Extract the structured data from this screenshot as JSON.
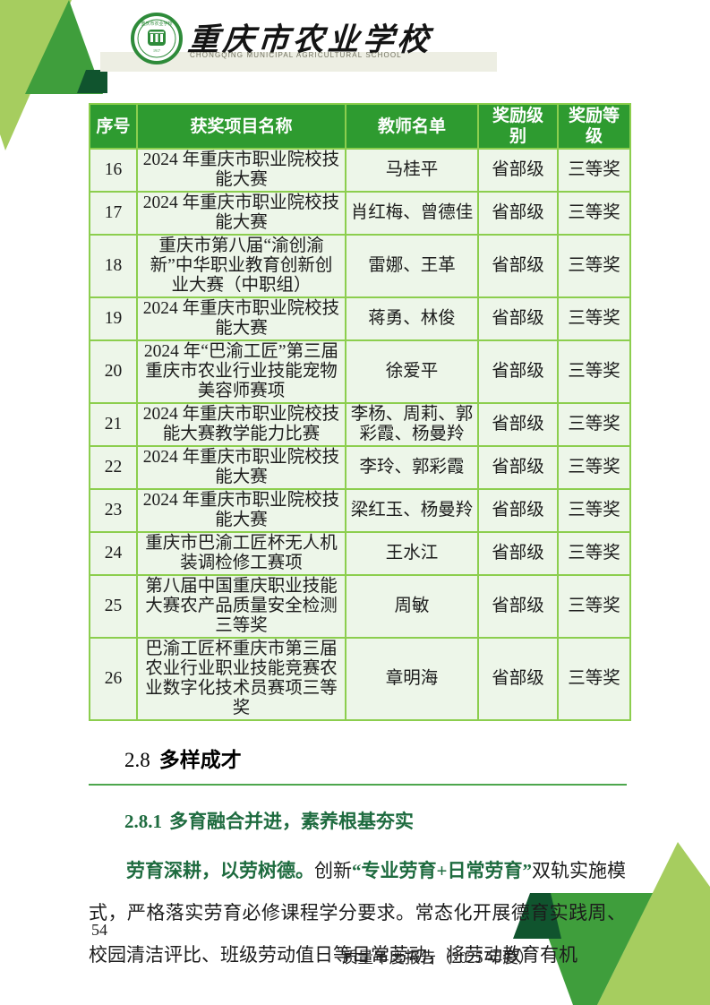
{
  "header": {
    "school_name_cn": "重庆市农业学校",
    "school_name_en": "CHONGQING MUNICIPAL AGRICULTURAL SCHOOL",
    "logo_icon": "school-emblem-green-ring-pavilion"
  },
  "colors": {
    "table_header_green": "#2e9b30",
    "table_border_green": "#8cce4e",
    "table_cell_bg": "#edf6e9",
    "decor_light_green": "#a6cd5f",
    "decor_mid_green": "#3f9e3c",
    "decor_dark_green": "#10542e",
    "heading_green": "#1e6b3f",
    "rule_green": "#4da64d",
    "header_bar_gray": "#edeee3"
  },
  "table": {
    "headers": [
      "序号",
      "获奖项目名称",
      "教师名单",
      "奖励级别",
      "奖励等级"
    ],
    "rows": [
      [
        "16",
        "2024 年重庆市职业院校技能大赛",
        "马桂平",
        "省部级",
        "三等奖"
      ],
      [
        "17",
        "2024 年重庆市职业院校技能大赛",
        "肖红梅、曾德佳",
        "省部级",
        "三等奖"
      ],
      [
        "18",
        "重庆市第八届“渝创渝新”中华职业教育创新创业大赛（中职组）",
        "雷娜、王革",
        "省部级",
        "三等奖"
      ],
      [
        "19",
        "2024 年重庆市职业院校技能大赛",
        "蒋勇、林俊",
        "省部级",
        "三等奖"
      ],
      [
        "20",
        "2024 年“巴渝工匠”第三届重庆市农业行业技能宠物美容师赛项",
        "徐爱平",
        "省部级",
        "三等奖"
      ],
      [
        "21",
        "2024 年重庆市职业院校技能大赛教学能力比赛",
        "李杨、周莉、郭彩霞、杨曼羚",
        "省部级",
        "三等奖"
      ],
      [
        "22",
        "2024 年重庆市职业院校技能大赛",
        "李玲、郭彩霞",
        "省部级",
        "三等奖"
      ],
      [
        "23",
        "2024 年重庆市职业院校技能大赛",
        "梁红玉、杨曼羚",
        "省部级",
        "三等奖"
      ],
      [
        "24",
        "重庆市巴渝工匠杯无人机装调检修工赛项",
        "王水江",
        "省部级",
        "三等奖"
      ],
      [
        "25",
        "第八届中国重庆职业技能大赛农产品质量安全检测三等奖",
        "周敏",
        "省部级",
        "三等奖"
      ],
      [
        "26",
        "巴渝工匠杯重庆市第三届农业行业职业技能竞赛农业数字化技术员赛项三等奖",
        "章明海",
        "省部级",
        "三等奖"
      ]
    ]
  },
  "section": {
    "number": "2.8",
    "title": "多样成才"
  },
  "subsection": {
    "number": "2.8.1",
    "title": "多育融合并进，素养根基夯实"
  },
  "paragraph": {
    "segments": [
      {
        "text": "劳育深耕，以劳树德。",
        "style": "green-bold"
      },
      {
        "text": "创新",
        "style": "normal"
      },
      {
        "text": "“专业劳育+日常劳育”",
        "style": "green-bold"
      },
      {
        "text": "双轨实施模式，严格落实劳育必修课程学分要求。常态化开展德育实践周、校园清洁评比、班级劳动值日等日常劳动，将劳动教育有机",
        "style": "normal"
      }
    ]
  },
  "footer": {
    "page_number": "54",
    "report_title": "质量年度报告（2025 年度）"
  }
}
